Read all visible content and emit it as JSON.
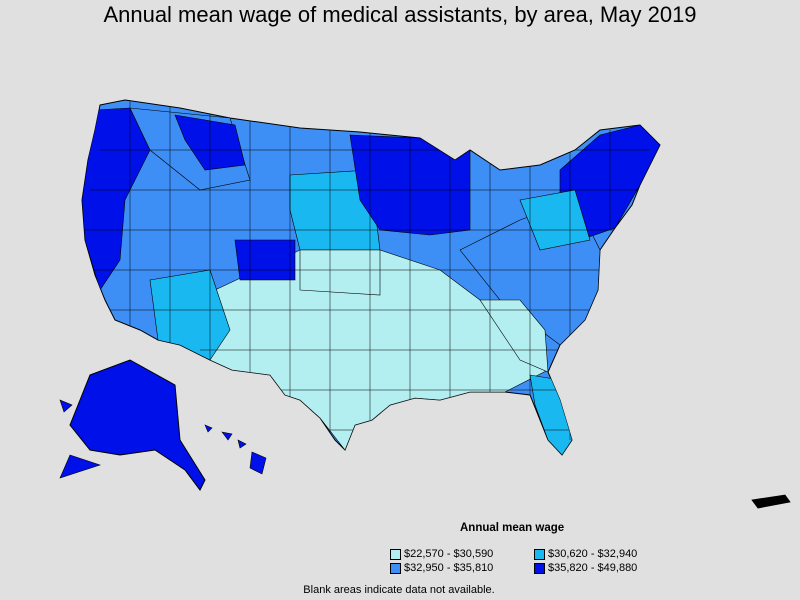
{
  "title": "Annual mean wage of medical assistants, by area, May 2019",
  "legend": {
    "title": "Annual mean wage",
    "items": [
      {
        "label": "$22,570 - $30,590",
        "color": "#b3eef0"
      },
      {
        "label": "$30,620 - $32,940",
        "color": "#1ab8f0"
      },
      {
        "label": "$32,950 - $35,810",
        "color": "#3d8ef5"
      },
      {
        "label": "$35,820 - $49,880",
        "color": "#0010e8"
      }
    ]
  },
  "note": "Blank areas indicate data not available.",
  "colors": {
    "background": "#e0e0e0",
    "border": "#000000"
  }
}
